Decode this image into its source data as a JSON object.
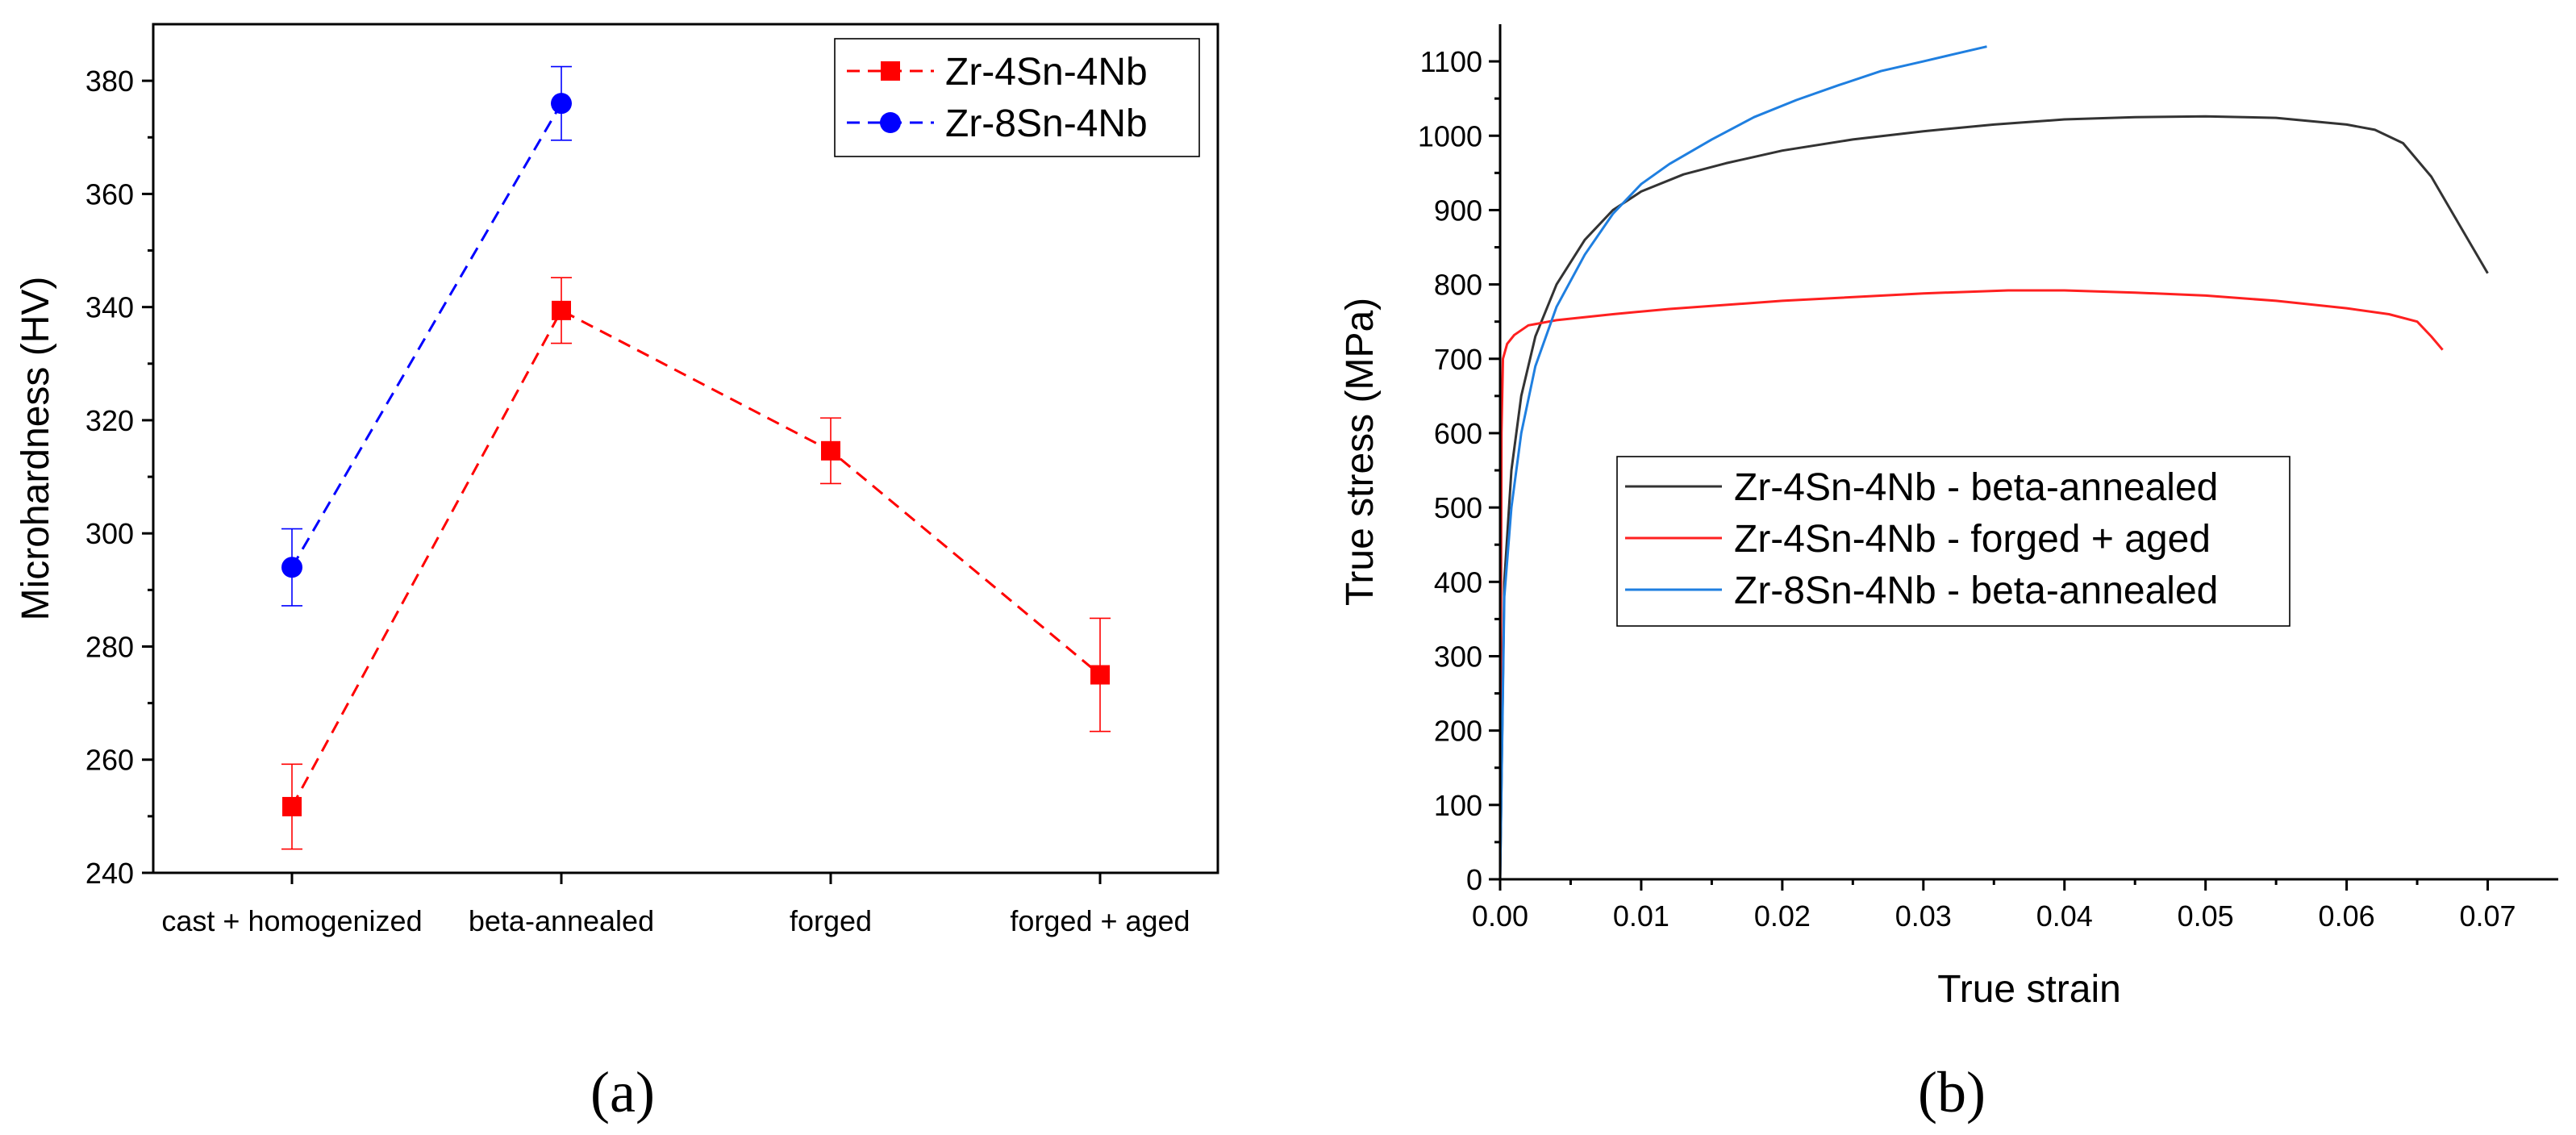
{
  "chart_data": [
    {
      "panel": "a",
      "type": "line",
      "title": "",
      "xlabel": "",
      "ylabel": "Microhardness (HV)",
      "categories": [
        "cast + homogenized",
        "beta-annealed",
        "forged",
        "forged + aged"
      ],
      "ylim": [
        240,
        390
      ],
      "yticks": [
        240,
        260,
        280,
        300,
        320,
        340,
        360,
        380
      ],
      "legend_position": "top-right",
      "series": [
        {
          "name": "Zr-4Sn-4Nb",
          "color": "#ff0000",
          "marker": "square",
          "linestyle": "dashed",
          "values": [
            251.7,
            339.4,
            314.6,
            275.0
          ],
          "errors": [
            7.5,
            5.8,
            5.8,
            10.0
          ]
        },
        {
          "name": "Zr-8Sn-4Nb",
          "color": "#0000ff",
          "marker": "circle",
          "linestyle": "dashed",
          "values": [
            294.0,
            376.0,
            null,
            null
          ],
          "errors": [
            6.8,
            6.5,
            null,
            null
          ]
        }
      ]
    },
    {
      "panel": "b",
      "type": "line",
      "title": "",
      "xlabel": "True strain",
      "ylabel": "True stress (MPa)",
      "xlim": [
        0,
        0.075
      ],
      "ylim": [
        0,
        1150
      ],
      "xticks": [
        "0.00",
        "0.01",
        "0.02",
        "0.03",
        "0.04",
        "0.05",
        "0.06",
        "0.07"
      ],
      "yticks": [
        0,
        100,
        200,
        300,
        400,
        500,
        600,
        700,
        800,
        900,
        1000,
        1100
      ],
      "legend_position": "center",
      "series": [
        {
          "name": "Zr-4Sn-4Nb - beta-annealed",
          "color": "#333333",
          "x": [
            0,
            0.0003,
            0.0008,
            0.0015,
            0.0025,
            0.004,
            0.006,
            0.008,
            0.01,
            0.013,
            0.016,
            0.02,
            0.025,
            0.03,
            0.035,
            0.04,
            0.045,
            0.05,
            0.055,
            0.06,
            0.062,
            0.064,
            0.066,
            0.068,
            0.07
          ],
          "y": [
            0,
            400,
            550,
            650,
            730,
            800,
            860,
            900,
            925,
            948,
            963,
            980,
            995,
            1006,
            1015,
            1022,
            1025,
            1026,
            1024,
            1015,
            1008,
            990,
            945,
            880,
            815
          ]
        },
        {
          "name": "Zr-4Sn-4Nb - forged + aged",
          "color": "#ff2020",
          "x": [
            0,
            5e-05,
            0.0001,
            0.0002,
            0.0005,
            0.001,
            0.002,
            0.004,
            0.008,
            0.012,
            0.02,
            0.03,
            0.036,
            0.04,
            0.045,
            0.05,
            0.055,
            0.06,
            0.063,
            0.065,
            0.066,
            0.0668
          ],
          "y": [
            0,
            300,
            600,
            700,
            720,
            732,
            745,
            752,
            760,
            767,
            778,
            788,
            792,
            792,
            789,
            785,
            778,
            768,
            760,
            750,
            730,
            712
          ]
        },
        {
          "name": "Zr-8Sn-4Nb - beta-annealed",
          "color": "#1f7fe0",
          "x": [
            0,
            0.0003,
            0.0008,
            0.0015,
            0.0025,
            0.004,
            0.006,
            0.008,
            0.01,
            0.012,
            0.015,
            0.018,
            0.021,
            0.024,
            0.027,
            0.03,
            0.032,
            0.0345
          ],
          "y": [
            0,
            380,
            500,
            600,
            690,
            770,
            840,
            895,
            935,
            962,
            995,
            1025,
            1048,
            1068,
            1087,
            1100,
            1109,
            1120
          ]
        }
      ]
    }
  ],
  "panel_labels": [
    "(a)",
    "(b)"
  ]
}
